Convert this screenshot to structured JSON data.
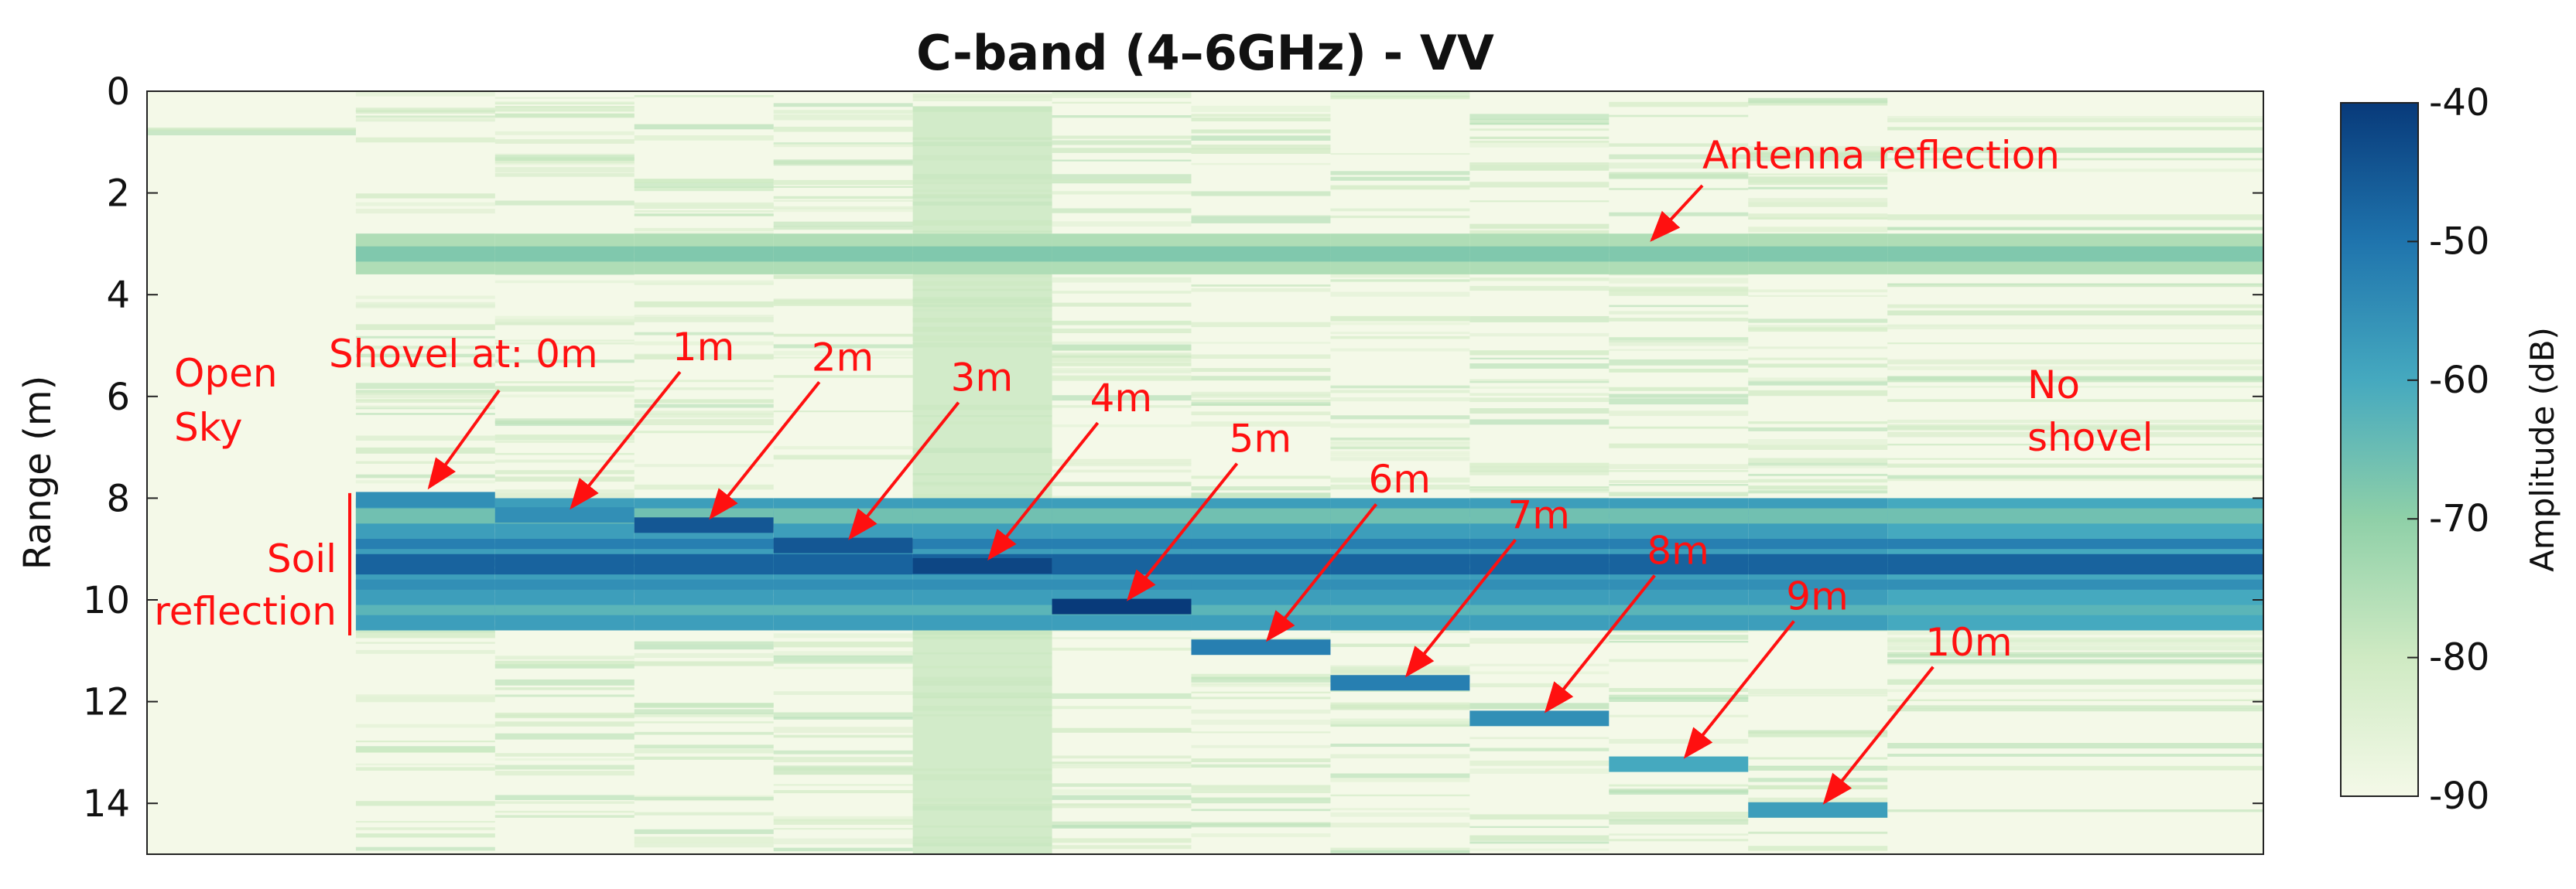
{
  "chart_data": {
    "type": "heatmap",
    "title": "C-band (4–6GHz) - VV",
    "ylabel": "Range (m)",
    "ylim": [
      0,
      15
    ],
    "y_reversed": true,
    "y_ticks": [
      "0",
      "2",
      "4",
      "6",
      "8",
      "10",
      "12",
      "14"
    ],
    "colorbar": {
      "label": "Amplitude (dB)",
      "range": [
        -90,
        -40
      ],
      "ticks": [
        "-40",
        "-50",
        "-60",
        "-70",
        "-80",
        "-90"
      ],
      "colors": [
        "#f4f9e8",
        "#cfeac3",
        "#8fd0a8",
        "#45a9bf",
        "#1f74ad",
        "#083a7a"
      ]
    },
    "columns": [
      {
        "label": "Open Sky",
        "shovel_range_m": null,
        "amplitude_dB": -88
      },
      {
        "label": "0m",
        "shovel_range_m": 8.0,
        "amplitude_dB": -55
      },
      {
        "label": "1m",
        "shovel_range_m": 8.3,
        "amplitude_dB": -55
      },
      {
        "label": "2m",
        "shovel_range_m": 8.5,
        "amplitude_dB": -45
      },
      {
        "label": "3m",
        "shovel_range_m": 8.9,
        "amplitude_dB": -45
      },
      {
        "label": "4m",
        "shovel_range_m": 9.3,
        "amplitude_dB": -42
      },
      {
        "label": "5m",
        "shovel_range_m": 10.1,
        "amplitude_dB": -40
      },
      {
        "label": "6m",
        "shovel_range_m": 10.9,
        "amplitude_dB": -52
      },
      {
        "label": "7m",
        "shovel_range_m": 11.6,
        "amplitude_dB": -52
      },
      {
        "label": "8m",
        "shovel_range_m": 12.3,
        "amplitude_dB": -55
      },
      {
        "label": "9m",
        "shovel_range_m": 13.2,
        "amplitude_dB": -60
      },
      {
        "label": "10m",
        "shovel_range_m": 14.1,
        "amplitude_dB": -58
      },
      {
        "label": "No shovel",
        "shovel_range_m": null,
        "amplitude_dB": -88
      }
    ],
    "bands": {
      "antenna_reflection_m": [
        2.8,
        3.6
      ],
      "soil_reflection_m": [
        8.0,
        10.6
      ]
    },
    "annotations": {
      "antenna": "Antenna reflection",
      "open_sky": [
        "Open",
        "Sky"
      ],
      "soil": [
        "Soil",
        "reflection"
      ],
      "shovel_prefix": "Shovel at: 0m",
      "no_shovel": [
        "No",
        "shovel"
      ]
    }
  }
}
